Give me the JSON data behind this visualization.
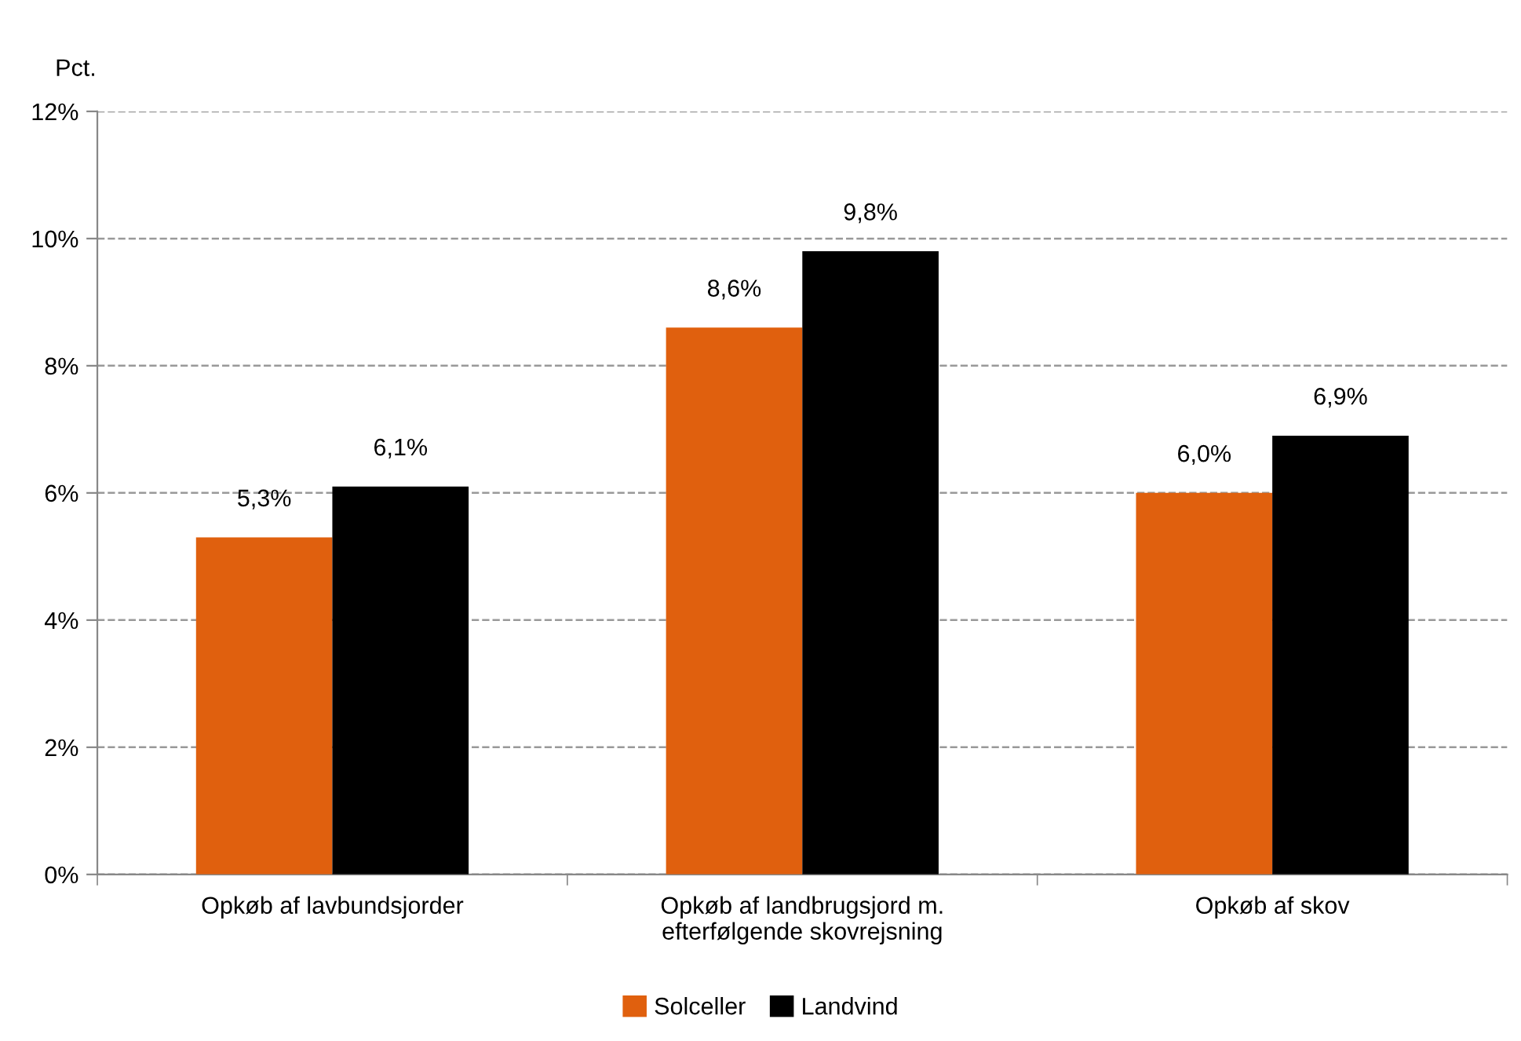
{
  "chart_data": {
    "type": "bar",
    "ylabel": "Pct.",
    "categories": [
      "Opkøb af lavbundsjorder",
      "Opkøb af landbrugsjord m.\nefterfølgende skovrejsning",
      "Opkøb af skov"
    ],
    "series": [
      {
        "name": "Solceller",
        "color": "#e0600e",
        "values": [
          5.3,
          8.6,
          6.0
        ],
        "value_labels": [
          "5,3%",
          "8,6%",
          "6,0%"
        ]
      },
      {
        "name": "Landvind",
        "color": "#000000",
        "values": [
          6.1,
          9.8,
          6.9
        ],
        "value_labels": [
          "6,1%",
          "9,8%",
          "6,9%"
        ]
      }
    ],
    "ylim": [
      0,
      12
    ],
    "yticks": [
      {
        "value": 0,
        "label": "0%"
      },
      {
        "value": 2,
        "label": "2%"
      },
      {
        "value": 4,
        "label": "4%"
      },
      {
        "value": 6,
        "label": "6%"
      },
      {
        "value": 8,
        "label": "8%"
      },
      {
        "value": 10,
        "label": "10%"
      },
      {
        "value": 12,
        "label": "12%"
      }
    ],
    "grid": "y",
    "legend": "bottom"
  }
}
